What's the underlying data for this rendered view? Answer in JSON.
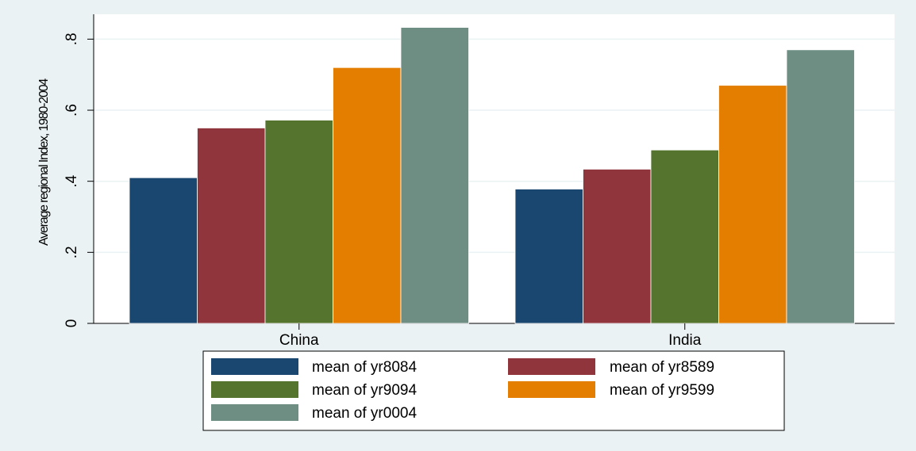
{
  "chart_data": {
    "type": "bar",
    "title": "",
    "xlabel": "",
    "ylabel": "Average regional Index, 1980-2004",
    "categories": [
      "China",
      "India"
    ],
    "series": [
      {
        "name": "mean of yr8084",
        "values": [
          0.41,
          0.378
        ],
        "color": "#1a476f"
      },
      {
        "name": "mean of yr8589",
        "values": [
          0.55,
          0.434
        ],
        "color": "#90353b"
      },
      {
        "name": "mean of yr9094",
        "values": [
          0.572,
          0.488
        ],
        "color": "#55752f"
      },
      {
        "name": "mean of yr9599",
        "values": [
          0.72,
          0.67
        ],
        "color": "#e37e00"
      },
      {
        "name": "mean of yr0004",
        "values": [
          0.833,
          0.77
        ],
        "color": "#6e8e84"
      }
    ],
    "ylim": [
      0,
      0.87
    ],
    "yticks": [
      0,
      0.2,
      0.4,
      0.6,
      0.8
    ],
    "ytick_labels": [
      "0",
      ".2",
      ".4",
      ".6",
      ".8"
    ],
    "grid": true,
    "legend_placement": "bottom"
  },
  "colors": {
    "background": "#eaf2f3",
    "plot_background": "#ffffff",
    "grid": "#eaf2f3"
  }
}
